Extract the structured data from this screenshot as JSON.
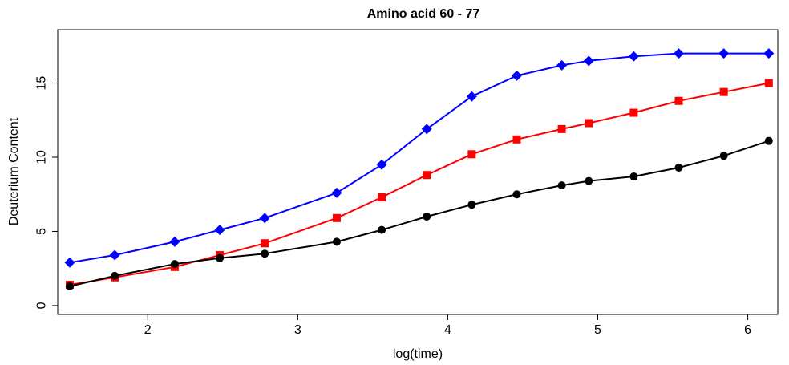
{
  "chart_data": {
    "type": "line",
    "title": "Amino acid 60 - 77",
    "xlabel": "log(time)",
    "ylabel": "Deuterium Content",
    "xlim": [
      1.4,
      6.2
    ],
    "ylim": [
      -0.6,
      18.6
    ],
    "x_ticks": [
      2,
      3,
      4,
      5,
      6
    ],
    "y_ticks": [
      0,
      5,
      10,
      15
    ],
    "grid": false,
    "x": [
      1.48,
      1.78,
      2.18,
      2.48,
      2.78,
      3.26,
      3.56,
      3.86,
      4.16,
      4.46,
      4.76,
      4.94,
      5.24,
      5.54,
      5.84,
      6.14
    ],
    "series": [
      {
        "color": "#0000ff",
        "marker": "diamond",
        "values": [
          2.9,
          3.4,
          4.3,
          5.1,
          5.9,
          7.6,
          9.5,
          11.9,
          14.1,
          15.5,
          16.2,
          16.5,
          16.8,
          17.0,
          17.0,
          17.0
        ]
      },
      {
        "color": "#ff0000",
        "marker": "square",
        "values": [
          1.4,
          1.9,
          2.6,
          3.4,
          4.2,
          5.9,
          7.3,
          8.8,
          10.2,
          11.2,
          11.9,
          12.3,
          13.0,
          13.8,
          14.4,
          15.0
        ]
      },
      {
        "color": "#000000",
        "marker": "circle",
        "values": [
          1.3,
          2.0,
          2.8,
          3.2,
          3.5,
          4.3,
          5.1,
          6.0,
          6.8,
          7.5,
          8.1,
          8.4,
          8.7,
          9.3,
          10.1,
          11.1
        ]
      }
    ]
  }
}
